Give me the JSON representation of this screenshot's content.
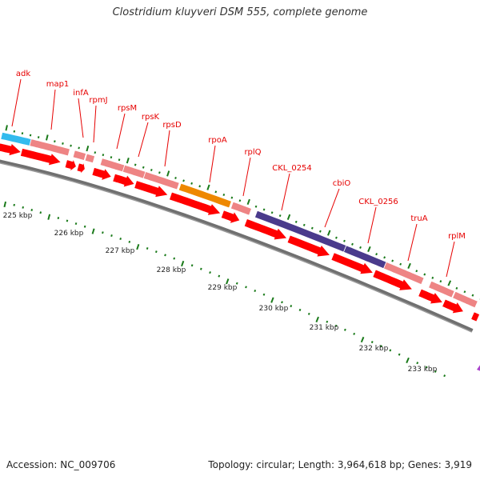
{
  "title": "Clostridium kluyveri DSM 555, complete genome",
  "footer": {
    "accession": "Accession: NC_009706",
    "summary": "Topology: circular; Length: 3,964,618 bp; Genes: 3,919"
  },
  "colors": {
    "cds": "#ff0000",
    "gene": "#ee8484",
    "backbone": "#707070",
    "tick": "#1a7a1a",
    "label": "#e60000",
    "adk_gene": "#33bbee",
    "rpoA_gene": "#ee8800",
    "cbiO_gene": "#4a3b8c",
    "end_marker": "#aa44cc"
  },
  "gene_labels": [
    "adk",
    "map1",
    "infA",
    "rpmJ",
    "rpsM",
    "rpsK",
    "rpsD",
    "rpoA",
    "rplQ",
    "CKL_0254",
    "cbiO",
    "CKL_0256",
    "truA",
    "rplM"
  ],
  "kbp_labels": [
    "225 kbp",
    "226 kbp",
    "227 kbp",
    "228 kbp",
    "229 kbp",
    "230 kbp",
    "231 kbp",
    "232 kbp",
    "233 kbp"
  ]
}
